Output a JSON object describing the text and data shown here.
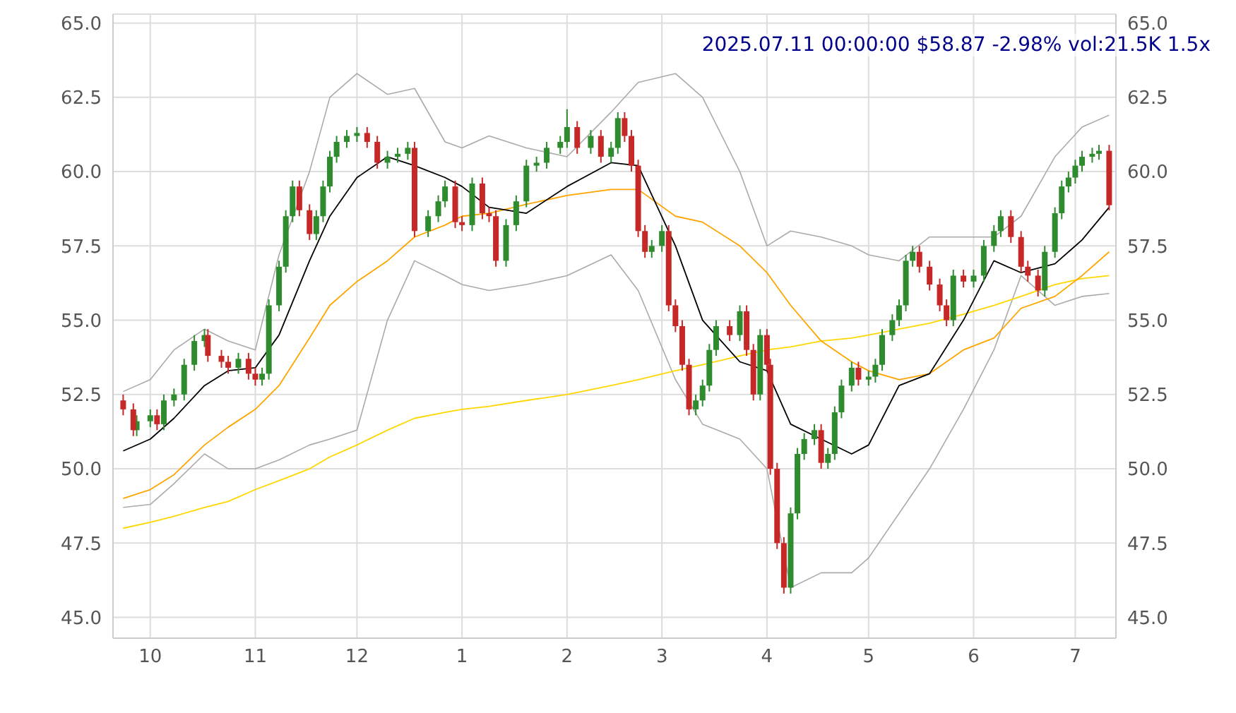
{
  "chart_data": {
    "type": "candlestick",
    "title": "2025.07.11 00:00:00 $58.87 -2.98% vol:21.5K 1.5x",
    "xlim": [
      "2024-09-20",
      "2025-07-13"
    ],
    "xticks": [
      {
        "value": "2024-10-01",
        "label": "10"
      },
      {
        "value": "2024-11-01",
        "label": "11"
      },
      {
        "value": "2024-12-01",
        "label": "12"
      },
      {
        "value": "2025-01-01",
        "label": "1"
      },
      {
        "value": "2025-02-01",
        "label": "2"
      },
      {
        "value": "2025-03-01",
        "label": "3"
      },
      {
        "value": "2025-04-01",
        "label": "4"
      },
      {
        "value": "2025-05-01",
        "label": "5"
      },
      {
        "value": "2025-06-01",
        "label": "6"
      },
      {
        "value": "2025-07-01",
        "label": "7"
      }
    ],
    "ylim": [
      44.3,
      65.3
    ],
    "yticks": [
      {
        "value": 45,
        "label": "45.0"
      },
      {
        "value": 47.5,
        "label": "47.5"
      },
      {
        "value": 50,
        "label": "50.0"
      },
      {
        "value": 52.5,
        "label": "52.5"
      },
      {
        "value": 55,
        "label": "55.0"
      },
      {
        "value": 57.5,
        "label": "57.5"
      },
      {
        "value": 60,
        "label": "60.0"
      },
      {
        "value": 62.5,
        "label": "62.5"
      },
      {
        "value": 65,
        "label": "65.0"
      }
    ],
    "y2lim": [
      44.3,
      65.3
    ],
    "y2ticks": [
      {
        "value": 45,
        "label": "45.0"
      },
      {
        "value": 47.5,
        "label": "47.5"
      },
      {
        "value": 50,
        "label": "50.0"
      },
      {
        "value": 52.5,
        "label": "52.5"
      },
      {
        "value": 55,
        "label": "55.0"
      },
      {
        "value": 57.5,
        "label": "57.5"
      },
      {
        "value": 60,
        "label": "60.0"
      },
      {
        "value": 62.5,
        "label": "62.5"
      },
      {
        "value": 65,
        "label": "65.0"
      }
    ],
    "grid": true,
    "series": [
      {
        "type": "line",
        "color": "#aaaaaa",
        "x": [
          "2024-09-23",
          "2024-10-01",
          "2024-10-08",
          "2024-10-17",
          "2024-10-24",
          "2024-11-01",
          "2024-11-08",
          "2024-11-17",
          "2024-11-23",
          "2024-12-01",
          "2024-12-10",
          "2024-12-18",
          "2024-12-27",
          "2025-01-01",
          "2025-01-09",
          "2025-01-20",
          "2025-02-01",
          "2025-02-14",
          "2025-02-22",
          "2025-03-05",
          "2025-03-13",
          "2025-03-24",
          "2025-04-01",
          "2025-04-08",
          "2025-04-17",
          "2025-04-26",
          "2025-05-01",
          "2025-05-10",
          "2025-05-19",
          "2025-05-29",
          "2025-06-07",
          "2025-06-15",
          "2025-06-25",
          "2025-07-03",
          "2025-07-11"
        ],
        "values": [
          52.6,
          53.0,
          54.0,
          54.7,
          54.3,
          54.0,
          57.2,
          60.0,
          62.5,
          63.3,
          62.6,
          62.8,
          61.0,
          60.8,
          61.2,
          60.8,
          60.5,
          62.0,
          63.0,
          63.3,
          62.5,
          60.0,
          57.5,
          58.0,
          57.8,
          57.5,
          57.2,
          57.0,
          57.8,
          57.8,
          57.8,
          58.5,
          60.5,
          61.5,
          61.9
        ]
      },
      {
        "type": "line",
        "color": "#aaaaaa",
        "x": [
          "2024-09-23",
          "2024-10-01",
          "2024-10-08",
          "2024-10-17",
          "2024-10-24",
          "2024-11-01",
          "2024-11-08",
          "2024-11-17",
          "2024-11-23",
          "2024-12-01",
          "2024-12-10",
          "2024-12-18",
          "2024-12-27",
          "2025-01-01",
          "2025-01-09",
          "2025-01-20",
          "2025-02-01",
          "2025-02-14",
          "2025-02-22",
          "2025-03-05",
          "2025-03-13",
          "2025-03-24",
          "2025-04-01",
          "2025-04-08",
          "2025-04-17",
          "2025-04-26",
          "2025-05-01",
          "2025-05-10",
          "2025-05-19",
          "2025-05-29",
          "2025-06-07",
          "2025-06-15",
          "2025-06-25",
          "2025-07-03",
          "2025-07-11"
        ],
        "values": [
          48.7,
          48.8,
          49.5,
          50.5,
          50.0,
          50.0,
          50.3,
          50.8,
          51.0,
          51.3,
          55.0,
          57.0,
          56.5,
          56.2,
          56.0,
          56.2,
          56.5,
          57.2,
          56.0,
          53.0,
          51.5,
          51.0,
          50.0,
          46.0,
          46.5,
          46.5,
          47.0,
          48.5,
          50.0,
          52.0,
          54.0,
          56.5,
          55.5,
          55.8,
          55.9
        ]
      },
      {
        "type": "line",
        "color": "#ffd700",
        "x": [
          "2024-09-23",
          "2024-10-01",
          "2024-10-08",
          "2024-10-17",
          "2024-10-24",
          "2024-11-01",
          "2024-11-08",
          "2024-11-17",
          "2024-11-23",
          "2024-12-01",
          "2024-12-10",
          "2024-12-18",
          "2024-12-27",
          "2025-01-01",
          "2025-01-09",
          "2025-01-20",
          "2025-02-01",
          "2025-02-14",
          "2025-02-22",
          "2025-03-05",
          "2025-03-13",
          "2025-03-24",
          "2025-04-01",
          "2025-04-08",
          "2025-04-17",
          "2025-04-26",
          "2025-05-01",
          "2025-05-10",
          "2025-05-19",
          "2025-05-29",
          "2025-06-07",
          "2025-06-15",
          "2025-06-25",
          "2025-07-03",
          "2025-07-11"
        ],
        "values": [
          48.0,
          48.2,
          48.4,
          48.7,
          48.9,
          49.3,
          49.6,
          50.0,
          50.4,
          50.8,
          51.3,
          51.7,
          51.9,
          52.0,
          52.1,
          52.3,
          52.5,
          52.8,
          53.0,
          53.3,
          53.5,
          53.8,
          54.0,
          54.1,
          54.3,
          54.4,
          54.5,
          54.7,
          54.9,
          55.2,
          55.5,
          55.8,
          56.2,
          56.4,
          56.5
        ]
      },
      {
        "type": "line",
        "color": "#ffa500",
        "x": [
          "2024-09-23",
          "2024-10-01",
          "2024-10-08",
          "2024-10-17",
          "2024-10-24",
          "2024-11-01",
          "2024-11-08",
          "2024-11-17",
          "2024-11-23",
          "2024-12-01",
          "2024-12-10",
          "2024-12-18",
          "2024-12-27",
          "2025-01-01",
          "2025-01-09",
          "2025-01-20",
          "2025-02-01",
          "2025-02-14",
          "2025-02-22",
          "2025-03-05",
          "2025-03-13",
          "2025-03-24",
          "2025-04-01",
          "2025-04-08",
          "2025-04-17",
          "2025-04-26",
          "2025-05-01",
          "2025-05-10",
          "2025-05-19",
          "2025-05-29",
          "2025-06-07",
          "2025-06-15",
          "2025-06-25",
          "2025-07-03",
          "2025-07-11"
        ],
        "values": [
          49.0,
          49.3,
          49.8,
          50.8,
          51.4,
          52.0,
          52.8,
          54.4,
          55.5,
          56.3,
          57.0,
          57.8,
          58.2,
          58.5,
          58.6,
          58.9,
          59.2,
          59.4,
          59.4,
          58.5,
          58.3,
          57.5,
          56.6,
          55.5,
          54.3,
          53.6,
          53.3,
          53.0,
          53.2,
          54.0,
          54.4,
          55.4,
          55.8,
          56.5,
          57.3
        ]
      },
      {
        "type": "line",
        "color": "#000000",
        "x": [
          "2024-09-23",
          "2024-10-01",
          "2024-10-08",
          "2024-10-17",
          "2024-10-24",
          "2024-11-01",
          "2024-11-08",
          "2024-11-17",
          "2024-11-23",
          "2024-12-01",
          "2024-12-10",
          "2024-12-18",
          "2024-12-27",
          "2025-01-01",
          "2025-01-09",
          "2025-01-20",
          "2025-02-01",
          "2025-02-14",
          "2025-02-22",
          "2025-03-05",
          "2025-03-13",
          "2025-03-24",
          "2025-04-01",
          "2025-04-08",
          "2025-04-17",
          "2025-04-26",
          "2025-05-01",
          "2025-05-10",
          "2025-05-19",
          "2025-05-29",
          "2025-06-07",
          "2025-06-15",
          "2025-06-25",
          "2025-07-03",
          "2025-07-11"
        ],
        "values": [
          50.6,
          51.0,
          51.7,
          52.8,
          53.3,
          53.4,
          54.5,
          57.0,
          58.5,
          59.8,
          60.5,
          60.2,
          59.8,
          59.5,
          58.8,
          58.6,
          59.5,
          60.3,
          60.2,
          57.5,
          55.0,
          53.6,
          53.3,
          51.5,
          51.0,
          50.5,
          50.8,
          52.8,
          53.2,
          55.0,
          57.0,
          56.6,
          56.9,
          57.7,
          58.8
        ]
      },
      {
        "type": "candlestick",
        "color": "#2e8b2e",
        "x": [
          "2024-09-27",
          "2024-10-01",
          "2024-10-05",
          "2024-10-08",
          "2024-10-11",
          "2024-10-14",
          "2024-10-17",
          "2024-10-27",
          "2024-11-03",
          "2024-11-05",
          "2024-11-08",
          "2024-11-10",
          "2024-11-12",
          "2024-11-19",
          "2024-11-21",
          "2024-11-23",
          "2024-11-25",
          "2024-11-28",
          "2024-12-01",
          "2024-12-10",
          "2024-12-13",
          "2024-12-16",
          "2024-12-22",
          "2024-12-25",
          "2024-12-27",
          "2025-01-04",
          "2025-01-14",
          "2025-01-17",
          "2025-01-20",
          "2025-01-23",
          "2025-01-26",
          "2025-01-30",
          "2025-02-01",
          "2025-02-08",
          "2025-02-14",
          "2025-02-16",
          "2025-02-26",
          "2025-03-01",
          "2025-03-11",
          "2025-03-13",
          "2025-03-15",
          "2025-03-17",
          "2025-03-24",
          "2025-03-30",
          "2025-04-08",
          "2025-04-10",
          "2025-04-12",
          "2025-04-15",
          "2025-04-19",
          "2025-04-21",
          "2025-04-23",
          "2025-04-26",
          "2025-05-01",
          "2025-05-03",
          "2025-05-05",
          "2025-05-08",
          "2025-05-10",
          "2025-05-12",
          "2025-05-14",
          "2025-05-26",
          "2025-06-01",
          "2025-06-04",
          "2025-06-07",
          "2025-06-09",
          "2025-06-22",
          "2025-06-25",
          "2025-06-27",
          "2025-06-29",
          "2025-07-01",
          "2025-07-03",
          "2025-07-06",
          "2025-07-08"
        ],
        "ohlc": [
          [
            51.3,
            51.8,
            51.1,
            51.6
          ],
          [
            51.6,
            52.0,
            51.4,
            51.8
          ],
          [
            51.5,
            52.5,
            51.3,
            52.3
          ],
          [
            52.3,
            52.7,
            52.1,
            52.5
          ],
          [
            52.5,
            53.7,
            52.3,
            53.5
          ],
          [
            53.5,
            54.5,
            53.3,
            54.3
          ],
          [
            54.3,
            54.7,
            54.1,
            54.5
          ],
          [
            53.4,
            53.9,
            53.2,
            53.7
          ],
          [
            53.0,
            53.4,
            52.8,
            53.2
          ],
          [
            53.2,
            55.7,
            53.0,
            55.5
          ],
          [
            55.5,
            57.0,
            55.3,
            56.8
          ],
          [
            56.8,
            58.7,
            56.6,
            58.5
          ],
          [
            58.5,
            59.7,
            58.3,
            59.5
          ],
          [
            57.9,
            58.7,
            57.7,
            58.5
          ],
          [
            58.5,
            59.7,
            58.3,
            59.5
          ],
          [
            59.5,
            60.7,
            59.3,
            60.5
          ],
          [
            60.5,
            61.2,
            60.3,
            61.0
          ],
          [
            61.0,
            61.4,
            60.8,
            61.2
          ],
          [
            61.2,
            61.5,
            61.0,
            61.3
          ],
          [
            60.3,
            60.7,
            60.1,
            60.5
          ],
          [
            60.5,
            60.8,
            60.3,
            60.6
          ],
          [
            60.6,
            61.0,
            60.4,
            60.8
          ],
          [
            58.0,
            58.7,
            57.8,
            58.5
          ],
          [
            58.5,
            59.2,
            58.3,
            59.0
          ],
          [
            59.0,
            59.7,
            58.8,
            59.5
          ],
          [
            58.2,
            59.8,
            58.0,
            59.6
          ],
          [
            57.0,
            58.4,
            56.8,
            58.2
          ],
          [
            58.2,
            59.2,
            58.0,
            59.0
          ],
          [
            59.0,
            60.4,
            58.8,
            60.2
          ],
          [
            60.2,
            60.5,
            60.0,
            60.3
          ],
          [
            60.3,
            61.0,
            60.1,
            60.8
          ],
          [
            60.8,
            61.2,
            60.6,
            61.0
          ],
          [
            61.0,
            62.1,
            60.8,
            61.5
          ],
          [
            60.8,
            61.4,
            60.6,
            61.2
          ],
          [
            60.5,
            61.0,
            60.3,
            60.8
          ],
          [
            60.8,
            62.0,
            60.6,
            61.8
          ],
          [
            57.3,
            57.7,
            57.1,
            57.5
          ],
          [
            57.5,
            58.2,
            57.3,
            58.0
          ],
          [
            52.0,
            52.5,
            51.8,
            52.3
          ],
          [
            52.3,
            53.0,
            52.1,
            52.8
          ],
          [
            52.8,
            54.2,
            52.6,
            54.0
          ],
          [
            54.0,
            55.0,
            53.8,
            54.8
          ],
          [
            54.5,
            55.5,
            54.3,
            55.3
          ],
          [
            52.5,
            54.7,
            52.3,
            54.5
          ],
          [
            46.0,
            48.7,
            45.8,
            48.5
          ],
          [
            48.5,
            50.7,
            48.3,
            50.5
          ],
          [
            50.5,
            51.2,
            50.3,
            51.0
          ],
          [
            51.0,
            51.5,
            50.8,
            51.3
          ],
          [
            50.2,
            50.7,
            50.0,
            50.5
          ],
          [
            50.5,
            52.1,
            50.3,
            51.9
          ],
          [
            51.9,
            53.0,
            51.7,
            52.8
          ],
          [
            52.8,
            53.6,
            52.6,
            53.4
          ],
          [
            53.0,
            53.3,
            52.8,
            53.1
          ],
          [
            53.1,
            53.7,
            52.9,
            53.5
          ],
          [
            53.5,
            54.7,
            53.3,
            54.5
          ],
          [
            54.5,
            55.2,
            54.3,
            55.0
          ],
          [
            55.0,
            55.7,
            54.8,
            55.5
          ],
          [
            55.5,
            57.2,
            55.3,
            57.0
          ],
          [
            57.0,
            57.5,
            56.8,
            57.3
          ],
          [
            55.0,
            56.7,
            54.8,
            56.5
          ],
          [
            56.3,
            56.7,
            56.1,
            56.5
          ],
          [
            56.5,
            57.7,
            56.3,
            57.5
          ],
          [
            57.5,
            58.2,
            57.3,
            58.0
          ],
          [
            58.0,
            58.7,
            57.8,
            58.5
          ],
          [
            56.0,
            57.5,
            55.8,
            57.3
          ],
          [
            57.3,
            58.8,
            57.1,
            58.6
          ],
          [
            58.6,
            59.7,
            58.4,
            59.5
          ],
          [
            59.5,
            60.0,
            59.3,
            59.8
          ],
          [
            59.8,
            60.4,
            59.6,
            60.2
          ],
          [
            60.2,
            60.7,
            60.0,
            60.5
          ],
          [
            60.5,
            60.8,
            60.3,
            60.6
          ],
          [
            60.6,
            60.9,
            60.4,
            60.7
          ]
        ]
      },
      {
        "type": "candlestick",
        "color": "#c62828",
        "x": [
          "2024-09-23",
          "2024-09-26",
          "2024-10-03",
          "2024-10-18",
          "2024-10-22",
          "2024-10-24",
          "2024-10-30",
          "2024-11-01",
          "2024-11-14",
          "2024-11-17",
          "2024-12-04",
          "2024-12-07",
          "2024-12-18",
          "2024-12-30",
          "2025-01-01",
          "2025-01-07",
          "2025-01-09",
          "2025-01-11",
          "2025-02-04",
          "2025-02-11",
          "2025-02-18",
          "2025-02-20",
          "2025-02-22",
          "2025-02-24",
          "2025-03-03",
          "2025-03-05",
          "2025-03-07",
          "2025-03-09",
          "2025-03-21",
          "2025-03-26",
          "2025-03-28",
          "2025-04-01",
          "2025-04-02",
          "2025-04-04",
          "2025-04-06",
          "2025-04-17",
          "2025-04-28",
          "2025-05-16",
          "2025-05-19",
          "2025-05-22",
          "2025-05-24",
          "2025-05-29",
          "2025-06-12",
          "2025-06-15",
          "2025-06-17",
          "2025-06-20",
          "2025-07-11"
        ],
        "ohlc": [
          [
            52.3,
            52.5,
            51.8,
            52.0
          ],
          [
            52.0,
            52.2,
            51.1,
            51.3
          ],
          [
            51.8,
            52.0,
            51.3,
            51.5
          ],
          [
            54.5,
            54.7,
            53.6,
            53.8
          ],
          [
            53.8,
            54.0,
            53.4,
            53.6
          ],
          [
            53.6,
            53.8,
            53.2,
            53.4
          ],
          [
            53.7,
            53.9,
            53.0,
            53.2
          ],
          [
            53.2,
            53.4,
            52.8,
            53.0
          ],
          [
            59.5,
            59.7,
            58.5,
            58.7
          ],
          [
            58.7,
            58.9,
            57.7,
            57.9
          ],
          [
            61.3,
            61.5,
            60.8,
            61.0
          ],
          [
            61.0,
            61.2,
            60.1,
            60.3
          ],
          [
            60.8,
            61.0,
            57.8,
            58.0
          ],
          [
            59.5,
            59.7,
            58.1,
            58.3
          ],
          [
            58.3,
            58.5,
            58.0,
            58.2
          ],
          [
            59.6,
            59.8,
            58.4,
            58.6
          ],
          [
            58.6,
            58.8,
            58.3,
            58.5
          ],
          [
            58.5,
            58.7,
            56.8,
            57.0
          ],
          [
            61.5,
            61.7,
            60.6,
            60.8
          ],
          [
            61.2,
            61.4,
            60.3,
            60.5
          ],
          [
            61.8,
            62.0,
            61.0,
            61.2
          ],
          [
            61.2,
            61.4,
            60.0,
            60.2
          ],
          [
            60.2,
            60.4,
            57.8,
            58.0
          ],
          [
            58.0,
            58.2,
            57.1,
            57.3
          ],
          [
            58.0,
            58.2,
            55.3,
            55.5
          ],
          [
            55.5,
            55.7,
            54.6,
            54.8
          ],
          [
            54.8,
            55.0,
            53.3,
            53.5
          ],
          [
            53.5,
            53.7,
            51.8,
            52.0
          ],
          [
            54.8,
            55.0,
            54.3,
            54.5
          ],
          [
            55.3,
            55.5,
            53.8,
            54.0
          ],
          [
            54.0,
            54.2,
            52.3,
            52.5
          ],
          [
            54.5,
            54.7,
            53.3,
            53.5
          ],
          [
            53.5,
            53.7,
            49.8,
            50.0
          ],
          [
            50.0,
            50.2,
            47.3,
            47.5
          ],
          [
            47.5,
            47.7,
            45.8,
            46.0
          ],
          [
            51.3,
            51.5,
            50.0,
            50.2
          ],
          [
            53.4,
            53.6,
            52.8,
            53.0
          ],
          [
            57.3,
            57.5,
            56.6,
            56.8
          ],
          [
            56.8,
            57.0,
            56.0,
            56.2
          ],
          [
            56.2,
            56.4,
            55.3,
            55.5
          ],
          [
            55.5,
            55.7,
            54.8,
            55.0
          ],
          [
            56.5,
            56.7,
            56.1,
            56.3
          ],
          [
            58.5,
            58.7,
            57.6,
            57.8
          ],
          [
            57.8,
            58.0,
            56.6,
            56.8
          ],
          [
            56.8,
            57.0,
            56.3,
            56.5
          ],
          [
            56.5,
            56.7,
            55.8,
            56.0
          ],
          [
            60.7,
            60.9,
            58.7,
            58.87
          ]
        ]
      }
    ]
  }
}
